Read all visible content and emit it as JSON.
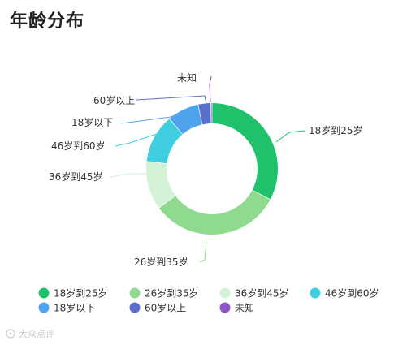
{
  "page": {
    "title": "年龄分布",
    "watermark": "大众点评"
  },
  "chart_data": {
    "type": "pie",
    "variant": "donut",
    "title": "年龄分布",
    "legend_position": "bottom",
    "slices": [
      {
        "label": "18岁到25岁",
        "value": 31.5,
        "color": "#1fc16b"
      },
      {
        "label": "26岁到35岁",
        "value": 31.0,
        "color": "#8fda8e"
      },
      {
        "label": "36岁到45岁",
        "value": 11.5,
        "color": "#d3f2d6"
      },
      {
        "label": "46岁到60岁",
        "value": 11.5,
        "color": "#3fcde0"
      },
      {
        "label": "18岁以下",
        "value": 7.5,
        "color": "#4fa3ec"
      },
      {
        "label": "60岁以上",
        "value": 3.0,
        "color": "#5a6fcc"
      },
      {
        "label": "未知",
        "value": 0.3,
        "color": "#8e55c8"
      }
    ]
  }
}
